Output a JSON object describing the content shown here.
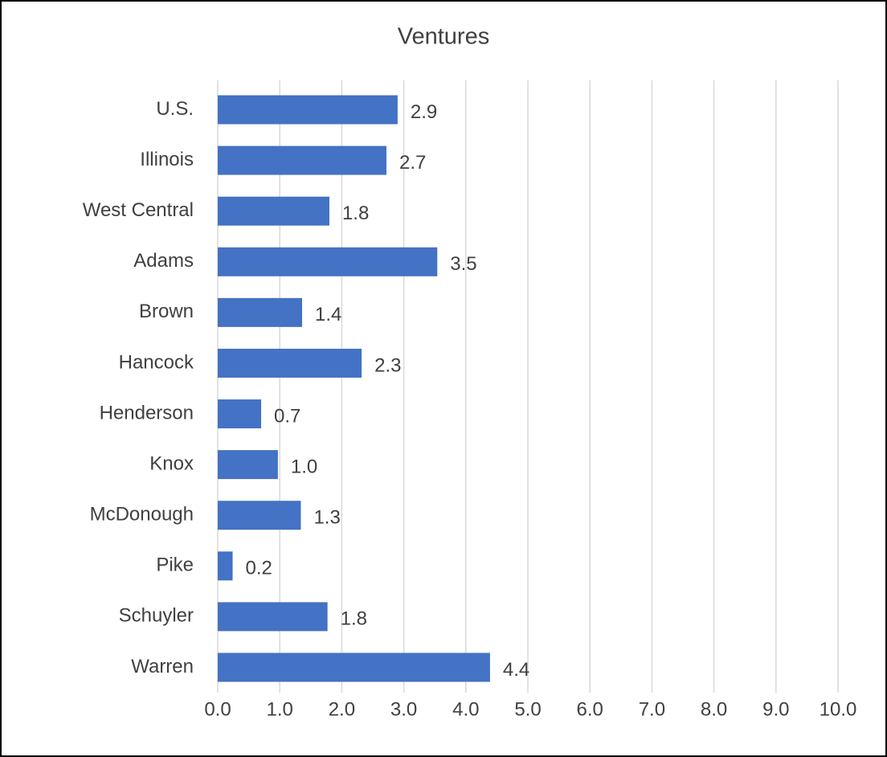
{
  "chart_data": {
    "type": "bar",
    "orientation": "horizontal",
    "title": "Ventures",
    "categories": [
      "U.S.",
      "Illinois",
      "West Central",
      "Adams",
      "Brown",
      "Hancock",
      "Henderson",
      "Knox",
      "McDonough",
      "Pike",
      "Schuyler",
      "Warren"
    ],
    "values": [
      2.9,
      2.72,
      1.8,
      3.54,
      1.36,
      2.32,
      0.7,
      0.97,
      1.34,
      0.24,
      1.77,
      4.39
    ],
    "value_labels": [
      "2.9",
      "2.7",
      "1.8",
      "3.5",
      "1.4",
      "2.3",
      "0.7",
      "1.0",
      "1.3",
      "0.2",
      "1.8",
      "4.4"
    ],
    "color": "#4472c4",
    "xlim": [
      0,
      10
    ],
    "xticks": [
      {
        "value": 0,
        "label": "0.0"
      },
      {
        "value": 1,
        "label": "1.0"
      },
      {
        "value": 2,
        "label": "2.0"
      },
      {
        "value": 3,
        "label": "3.0"
      },
      {
        "value": 4,
        "label": "4.0"
      },
      {
        "value": 5,
        "label": "5.0"
      },
      {
        "value": 6,
        "label": "6.0"
      },
      {
        "value": 7,
        "label": "7.0"
      },
      {
        "value": 8,
        "label": "8.0"
      },
      {
        "value": 9,
        "label": "9.0"
      },
      {
        "value": 10,
        "label": "10.0"
      }
    ],
    "grid": true
  }
}
